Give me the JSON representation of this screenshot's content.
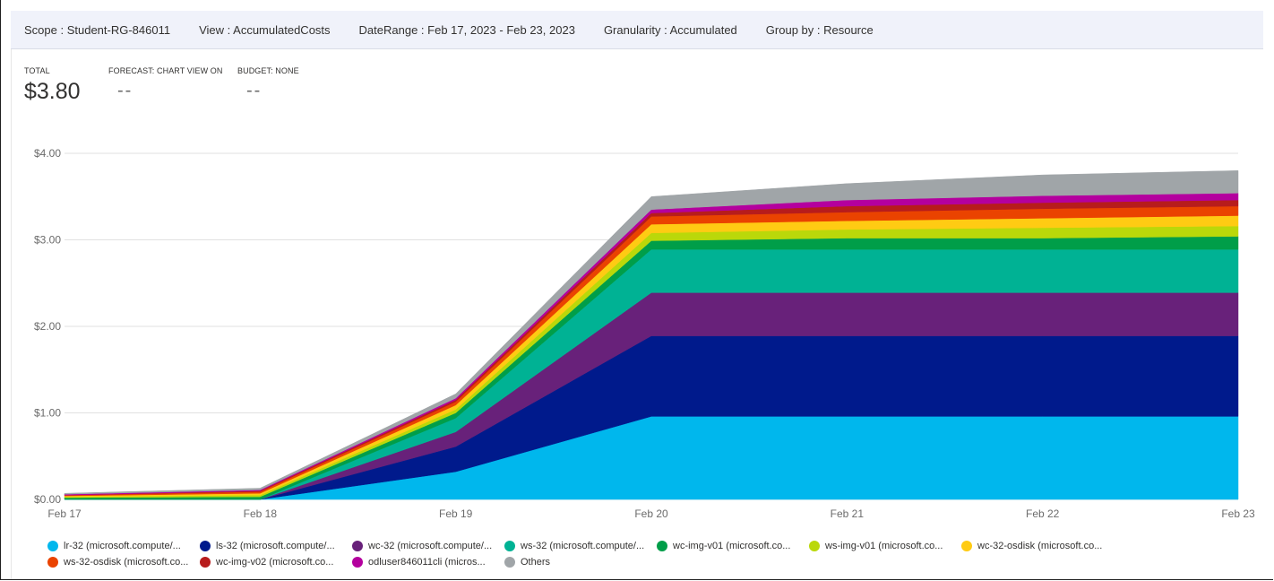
{
  "filters": {
    "scope": "Scope : Student-RG-846011",
    "view": "View : AccumulatedCosts",
    "date_range": "DateRange : Feb 17, 2023 - Feb 23, 2023",
    "granularity": "Granularity : Accumulated",
    "group_by": "Group by : Resource"
  },
  "summary": {
    "total_label": "TOTAL",
    "total_value": "$3.80",
    "forecast_label": "FORECAST: CHART VIEW ON",
    "forecast_value": "--",
    "budget_label": "BUDGET: NONE",
    "budget_value": "--"
  },
  "chart_data": {
    "type": "area",
    "stacked": true,
    "x": [
      "Feb 17",
      "Feb 18",
      "Feb 19",
      "Feb 20",
      "Feb 21",
      "Feb 22",
      "Feb 23"
    ],
    "ylim": [
      0,
      4
    ],
    "yticks": [
      "$0.00",
      "$1.00",
      "$2.00",
      "$3.00",
      "$4.00"
    ],
    "grid": true,
    "legend_position": "bottom",
    "series": [
      {
        "name": "lr-32 (microsoft.compute/...",
        "color": "#00b7ed",
        "values": [
          0.0,
          0.0,
          0.32,
          0.96,
          0.96,
          0.96,
          0.96
        ]
      },
      {
        "name": "ls-32 (microsoft.compute/...",
        "color": "#001a8c",
        "values": [
          0.0,
          0.0,
          0.29,
          0.93,
          0.93,
          0.93,
          0.93
        ]
      },
      {
        "name": "wc-32 (microsoft.compute/...",
        "color": "#68217a",
        "values": [
          0.0,
          0.0,
          0.17,
          0.5,
          0.5,
          0.5,
          0.5
        ]
      },
      {
        "name": "ws-32 (microsoft.compute/...",
        "color": "#00b294",
        "values": [
          0.0,
          0.0,
          0.16,
          0.5,
          0.5,
          0.5,
          0.5
        ]
      },
      {
        "name": "wc-img-v01 (microsoft.co...",
        "color": "#009e49",
        "values": [
          0.02,
          0.03,
          0.06,
          0.1,
          0.13,
          0.13,
          0.15
        ]
      },
      {
        "name": "ws-img-v01 (microsoft.co...",
        "color": "#bad80a",
        "values": [
          0.01,
          0.02,
          0.04,
          0.09,
          0.1,
          0.12,
          0.12
        ]
      },
      {
        "name": "wc-32-osdisk (microsoft.co...",
        "color": "#ffcb13",
        "values": [
          0.01,
          0.02,
          0.05,
          0.1,
          0.1,
          0.11,
          0.12
        ]
      },
      {
        "name": "ws-32-osdisk (microsoft.co...",
        "color": "#ea4300",
        "values": [
          0.01,
          0.02,
          0.04,
          0.09,
          0.1,
          0.11,
          0.11
        ]
      },
      {
        "name": "wc-img-v02 (microsoft.co...",
        "color": "#b71c1c",
        "values": [
          0.0,
          0.01,
          0.02,
          0.04,
          0.07,
          0.07,
          0.07
        ]
      },
      {
        "name": "odluser846011cli (micros...",
        "color": "#b4009e",
        "values": [
          0.01,
          0.01,
          0.02,
          0.04,
          0.07,
          0.08,
          0.08
        ]
      },
      {
        "name": "Others",
        "color": "#a0a5a8",
        "values": [
          0.01,
          0.02,
          0.05,
          0.15,
          0.19,
          0.24,
          0.26
        ]
      }
    ]
  }
}
